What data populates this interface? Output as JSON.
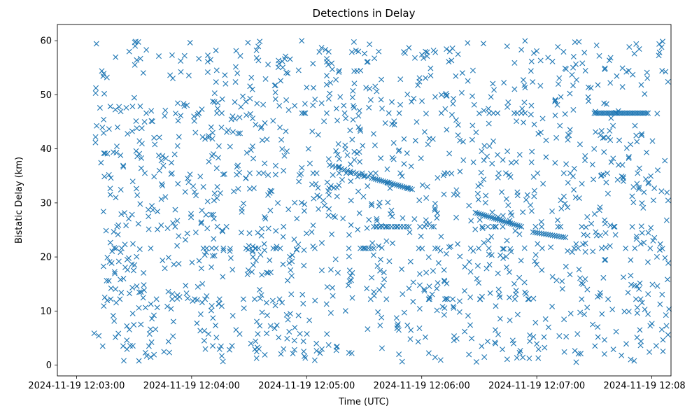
{
  "chart_data": {
    "type": "scatter",
    "title": "Detections in Delay",
    "xlabel": "Time (UTC)",
    "ylabel": "Bistatic Delay (km)",
    "x_ticks": [
      "2024-11-19 12:03:00",
      "2024-11-19 12:04:00",
      "2024-11-19 12:05:00",
      "2024-11-19 12:06:00",
      "2024-11-19 12:07:00",
      "2024-11-19 12:08:00"
    ],
    "y_ticks": [
      "0",
      "10",
      "20",
      "30",
      "40",
      "50",
      "60"
    ],
    "xlim": [
      "2024-11-19 12:02:50",
      "2024-11-19 12:08:10"
    ],
    "ylim": [
      -2,
      63
    ],
    "marker": "x",
    "color": "#1f77b4",
    "grid": false,
    "background_noise": {
      "x_start": "2024-11-19 12:03:09",
      "x_end": "2024-11-19 12:08:09",
      "y_range": [
        0.5,
        60
      ],
      "approx_count": 1500
    },
    "tracks": [
      {
        "x_start": "2024-11-19 12:05:12",
        "x_end": "2024-11-19 12:05:32",
        "y_start": 37,
        "y_end": 34.8,
        "points": 14
      },
      {
        "x_start": "2024-11-19 12:05:34",
        "x_end": "2024-11-19 12:05:55",
        "y_start": 34.6,
        "y_end": 32.5,
        "points": 22
      },
      {
        "x_start": "2024-11-19 12:06:28",
        "x_end": "2024-11-19 12:06:52",
        "y_start": 28.2,
        "y_end": 25.6,
        "points": 26
      },
      {
        "x_start": "2024-11-19 12:06:58",
        "x_end": "2024-11-19 12:07:15",
        "y_start": 24.6,
        "y_end": 23.6,
        "points": 16
      },
      {
        "x_start": "2024-11-19 12:07:30",
        "x_end": "2024-11-19 12:07:58",
        "y_start": 46.6,
        "y_end": 46.6,
        "points": 34
      },
      {
        "x_start": "2024-11-19 12:05:35",
        "x_end": "2024-11-19 12:05:52",
        "y_start": 25.6,
        "y_end": 25.6,
        "points": 12
      },
      {
        "x_start": "2024-11-19 12:05:28",
        "x_end": "2024-11-19 12:05:35",
        "y_start": 21.6,
        "y_end": 21.6,
        "points": 6
      }
    ]
  }
}
